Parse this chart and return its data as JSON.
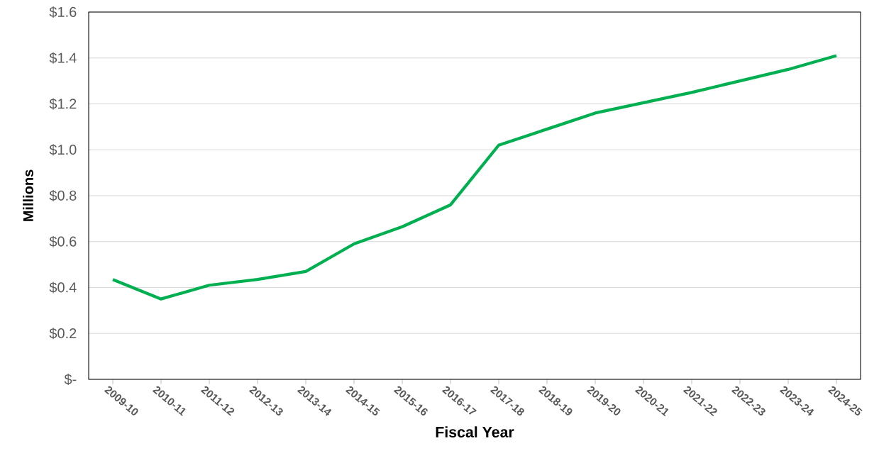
{
  "chart_data": {
    "type": "line",
    "xlabel": "Fiscal Year",
    "ylabel": "Millions",
    "categories": [
      "2009-10",
      "2010-11",
      "2011-12",
      "2012-13",
      "2013-14",
      "2014-15",
      "2015-16",
      "2016-17",
      "2017-18",
      "2018-19",
      "2019-20",
      "2020-21",
      "2021-22",
      "2022-23",
      "2023-24",
      "2024-25"
    ],
    "series": [
      {
        "color": "#00b050",
        "values": [
          0.435,
          0.35,
          0.41,
          0.435,
          0.47,
          0.59,
          0.665,
          0.76,
          1.02,
          1.09,
          1.16,
          1.205,
          1.25,
          1.3,
          1.35,
          1.41
        ]
      }
    ],
    "ylim": [
      0,
      1.6
    ],
    "yticks": [
      {
        "value": 0,
        "label": "$-"
      },
      {
        "value": 0.2,
        "label": "$0.2"
      },
      {
        "value": 0.4,
        "label": "$0.4"
      },
      {
        "value": 0.6,
        "label": "$0.6"
      },
      {
        "value": 0.8,
        "label": "$0.8"
      },
      {
        "value": 1.0,
        "label": "$1.0"
      },
      {
        "value": 1.2,
        "label": "$1.2"
      },
      {
        "value": 1.4,
        "label": "$1.4"
      },
      {
        "value": 1.6,
        "label": "$1.6"
      }
    ],
    "grid": "y",
    "marker": "none",
    "line_style": "solid"
  }
}
